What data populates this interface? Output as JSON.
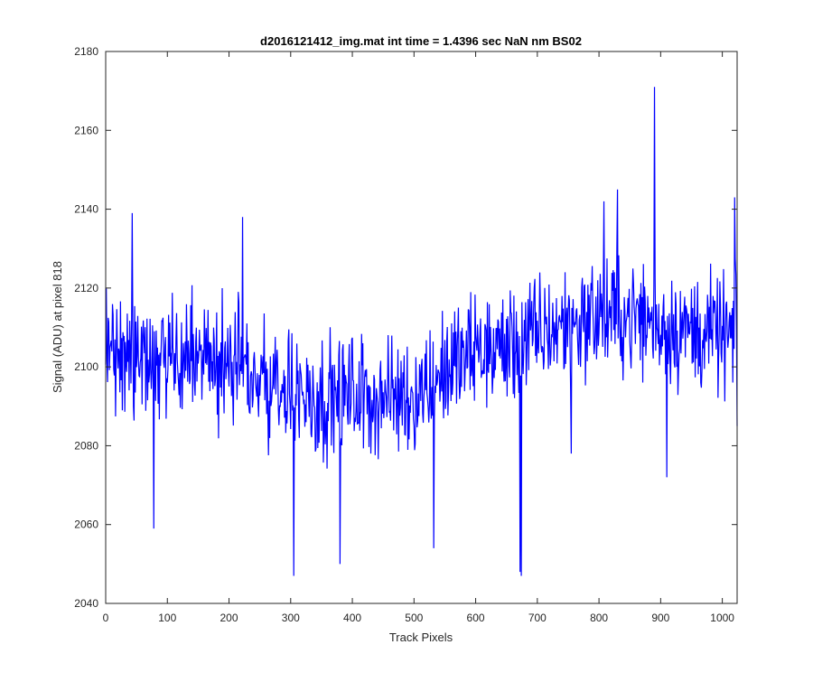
{
  "chart_data": {
    "type": "line",
    "title": "d2016121412_img.mat int time = 1.4396 sec  NaN nm BS02",
    "xlabel": "Track Pixels",
    "ylabel": "Signal (ADU) at pixel 818",
    "xlim": [
      0,
      1024
    ],
    "ylim": [
      2040,
      2180
    ],
    "xticks": [
      0,
      100,
      200,
      300,
      400,
      500,
      600,
      700,
      800,
      900,
      1000
    ],
    "yticks": [
      2040,
      2060,
      2080,
      2100,
      2120,
      2140,
      2160,
      2180
    ],
    "grid": false,
    "series": [
      {
        "name": "signal",
        "color": "#0000ff",
        "profile": [
          [
            0,
            2104
          ],
          [
            100,
            2102
          ],
          [
            200,
            2101
          ],
          [
            250,
            2097
          ],
          [
            300,
            2093
          ],
          [
            350,
            2092
          ],
          [
            400,
            2093
          ],
          [
            450,
            2092
          ],
          [
            500,
            2093
          ],
          [
            550,
            2099
          ],
          [
            600,
            2104
          ],
          [
            650,
            2105
          ],
          [
            700,
            2108
          ],
          [
            750,
            2111
          ],
          [
            800,
            2113
          ],
          [
            850,
            2113
          ],
          [
            900,
            2111
          ],
          [
            950,
            2109
          ],
          [
            1000,
            2108
          ],
          [
            1024,
            2107
          ]
        ],
        "noise_amplitude": 22,
        "highlights": [
          [
            43,
            2139
          ],
          [
            78,
            2059
          ],
          [
            222,
            2138
          ],
          [
            305,
            2047
          ],
          [
            380,
            2050
          ],
          [
            532,
            2054
          ],
          [
            672,
            2048
          ],
          [
            674,
            2047
          ],
          [
            755,
            2078
          ],
          [
            808,
            2142
          ],
          [
            830,
            2145
          ],
          [
            890,
            2171
          ],
          [
            910,
            2072
          ],
          [
            1020,
            2143
          ],
          [
            1024,
            2085
          ]
        ]
      }
    ]
  }
}
